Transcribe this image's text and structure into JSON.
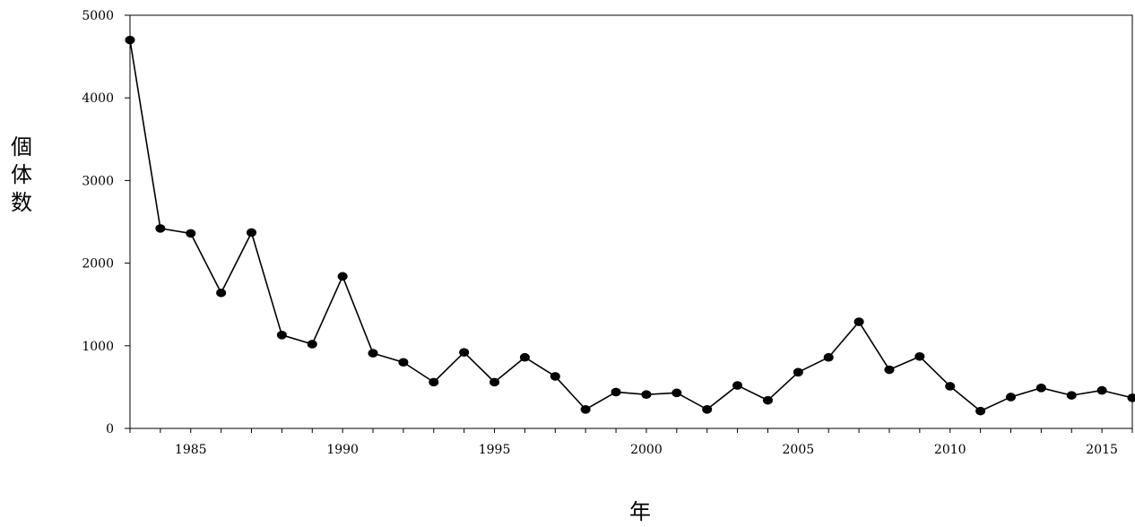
{
  "chart_data": {
    "type": "line",
    "title": "",
    "xlabel": "年",
    "ylabel": "個体数",
    "xlim": [
      1983,
      2016
    ],
    "ylim": [
      0,
      5000
    ],
    "yticks": [
      0,
      1000,
      2000,
      3000,
      4000,
      5000
    ],
    "xticks": [
      1985,
      1990,
      1995,
      2000,
      2005,
      2010,
      2015
    ],
    "grid": false,
    "legend": "none",
    "series": [
      {
        "color": "#000000",
        "marker": "circle",
        "x": [
          1983,
          1984,
          1985,
          1986,
          1987,
          1988,
          1989,
          1990,
          1991,
          1992,
          1993,
          1994,
          1995,
          1996,
          1997,
          1998,
          1999,
          2000,
          2001,
          2002,
          2003,
          2004,
          2005,
          2006,
          2007,
          2008,
          2009,
          2010,
          2011,
          2012,
          2013,
          2014,
          2015,
          2016
        ],
        "y": [
          4700,
          2420,
          2360,
          1640,
          2370,
          1130,
          1020,
          1840,
          910,
          800,
          560,
          920,
          560,
          860,
          630,
          230,
          440,
          410,
          430,
          230,
          520,
          340,
          680,
          860,
          1290,
          710,
          870,
          510,
          210,
          380,
          490,
          400,
          460,
          370
        ]
      }
    ]
  }
}
